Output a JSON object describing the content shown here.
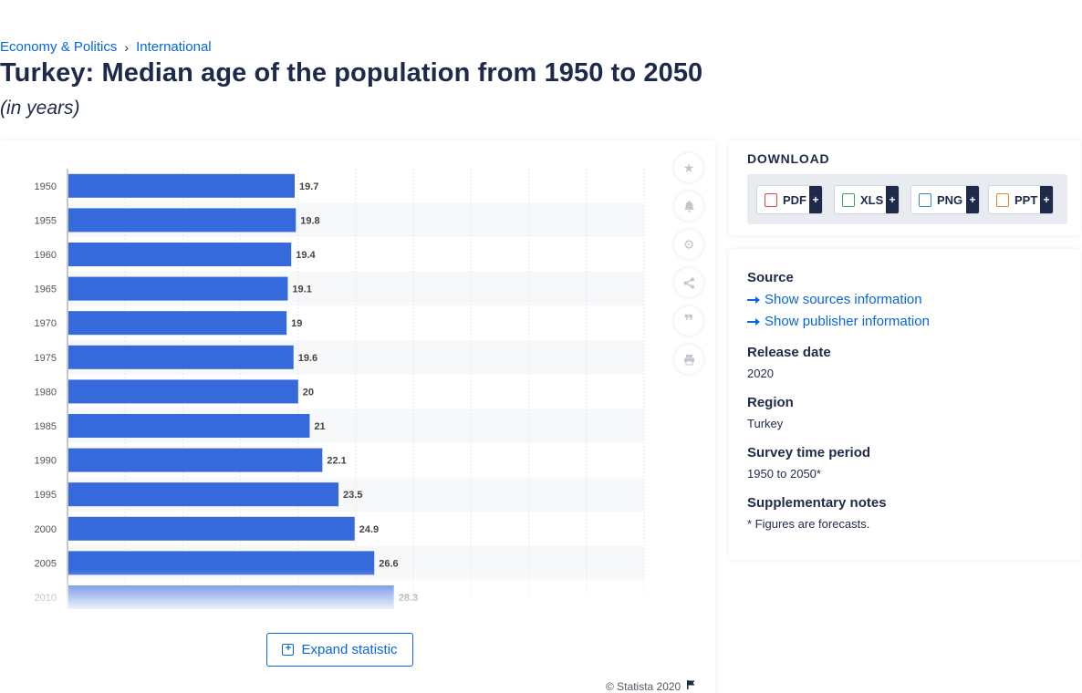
{
  "breadcrumb": {
    "items": [
      "Economy & Politics",
      "International"
    ]
  },
  "page": {
    "title": "Turkey: Median age of the population from 1950 to 2050",
    "subtitle": "(in years)"
  },
  "chart_data": {
    "type": "bar",
    "orientation": "horizontal",
    "categories": [
      "1950",
      "1955",
      "1960",
      "1965",
      "1970",
      "1975",
      "1980",
      "1985",
      "1990",
      "1995",
      "2000",
      "2005",
      "2010"
    ],
    "values": [
      19.7,
      19.8,
      19.4,
      19.1,
      19,
      19.6,
      20,
      21,
      22.1,
      23.5,
      24.9,
      26.6,
      28.3
    ],
    "data_labels": [
      "19.7",
      "19.8",
      "19.4",
      "19.1",
      "19",
      "19.6",
      "20",
      "21",
      "22.1",
      "23.5",
      "24.9",
      "26.6",
      "28.3"
    ],
    "xlim": [
      0,
      50
    ],
    "bar_color": "#3569dc",
    "grid": true
  },
  "tools": {
    "icons": [
      "star-icon",
      "bell-icon",
      "gear-icon",
      "share-icon",
      "quote-icon",
      "print-icon"
    ]
  },
  "expand": {
    "label": "Expand statistic"
  },
  "copyright": {
    "text": "© Statista 2020"
  },
  "download": {
    "heading": "DOWNLOAD",
    "formats": [
      {
        "label": "PDF",
        "icon": "pdf-icon",
        "color": "#e2453c"
      },
      {
        "label": "XLS",
        "icon": "xls-icon",
        "color": "#3aa35b"
      },
      {
        "label": "PNG",
        "icon": "png-icon",
        "color": "#3b7fd4"
      },
      {
        "label": "PPT",
        "icon": "ppt-icon",
        "color": "#e9862c"
      }
    ],
    "add_symbol": "+"
  },
  "info": {
    "source_label": "Source",
    "sources_link": "Show sources information",
    "publisher_link": "Show publisher information",
    "release_label": "Release date",
    "release_value": "2020",
    "region_label": "Region",
    "region_value": "Turkey",
    "period_label": "Survey time period",
    "period_value": "1950 to 2050*",
    "notes_label": "Supplementary notes",
    "notes_value": "* Figures are forecasts."
  }
}
